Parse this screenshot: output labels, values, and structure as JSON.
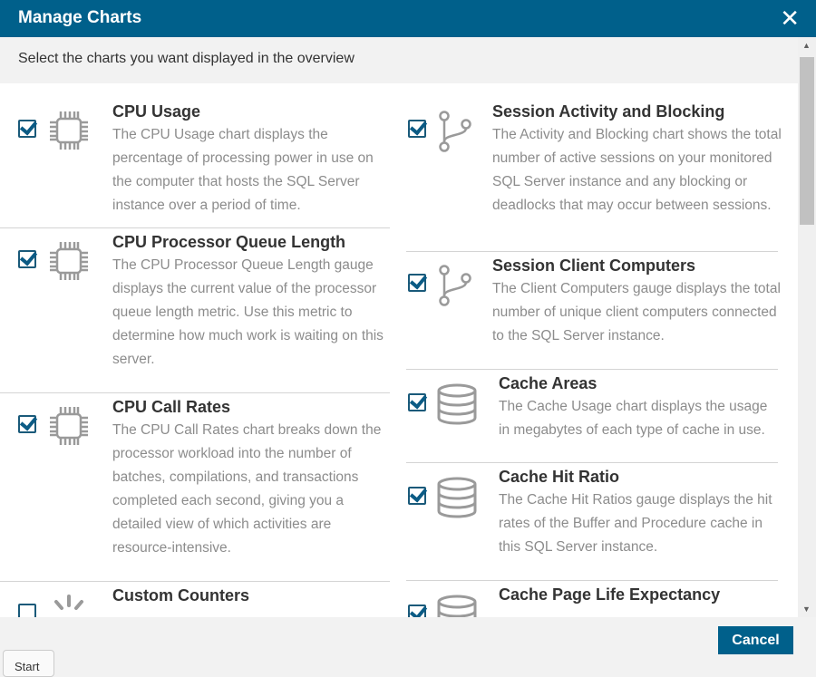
{
  "dialog": {
    "title": "Manage Charts",
    "close_icon": "close-icon",
    "subtitle": "Select the charts you want displayed in the overview",
    "cancel_label": "Cancel",
    "taskbar_button": "Start"
  },
  "colors": {
    "header": "#00608b",
    "checkbox": "#0b5b85"
  },
  "left": [
    {
      "title": "CPU Usage",
      "icon": "cpu-chip-icon",
      "checked": true,
      "desc": "The CPU Usage chart displays the percentage of processing power in use on the computer that hosts the SQL Server instance over a period of time."
    },
    {
      "title": "CPU Processor Queue Length",
      "icon": "cpu-chip-icon",
      "checked": true,
      "desc": "The CPU Processor Queue Length gauge displays the current value of the processor queue length metric. Use this metric to determine how much work is waiting on this server."
    },
    {
      "title": "CPU Call Rates",
      "icon": "cpu-chip-icon",
      "checked": true,
      "desc": "The CPU Call Rates chart breaks down the processor workload into the number of batches, compilations, and transactions completed each second, giving you a detailed view of which activities are resource-intensive."
    },
    {
      "title": "Custom Counters",
      "icon": "spinner-icon",
      "checked": false,
      "desc": ""
    }
  ],
  "right": [
    {
      "title": "Session Activity and Blocking",
      "icon": "branch-icon",
      "checked": true,
      "desc": "The Activity and Blocking chart shows the total number of active sessions on your monitored SQL Server instance and any blocking or deadlocks that may occur between sessions."
    },
    {
      "title": "Session Client Computers",
      "icon": "branch-icon",
      "checked": true,
      "desc": "The Client Computers gauge displays the total number of unique client computers connected to the SQL Server instance."
    },
    {
      "title": "Cache Areas",
      "icon": "database-icon",
      "checked": true,
      "desc": "The Cache Usage chart displays the usage in megabytes of each type of cache in use."
    },
    {
      "title": "Cache Hit Ratio",
      "icon": "database-icon",
      "checked": true,
      "desc": "The Cache Hit Ratios gauge displays the hit rates of the Buffer and Procedure cache in this SQL Server instance."
    },
    {
      "title": "Cache Page Life Expectancy",
      "icon": "database-icon",
      "checked": true,
      "desc": ""
    }
  ]
}
